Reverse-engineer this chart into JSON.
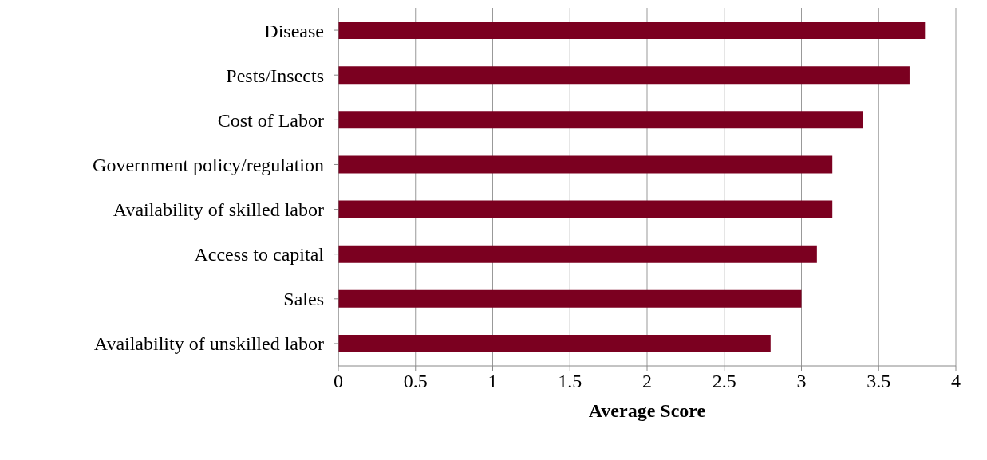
{
  "chart_data": {
    "type": "bar",
    "orientation": "horizontal",
    "xlabel": "Average Score",
    "categories": [
      "Disease",
      "Pests/Insects",
      "Cost of Labor",
      "Government policy/regulation",
      "Availability of skilled labor",
      "Access to capital",
      "Sales",
      "Availability of unskilled labor"
    ],
    "values": [
      3.8,
      3.7,
      3.4,
      3.2,
      3.2,
      3.1,
      3.0,
      2.8
    ],
    "color": "#7b0020",
    "xlim": [
      0,
      4
    ],
    "xticks": [
      0,
      0.5,
      1,
      1.5,
      2,
      2.5,
      3,
      3.5,
      4
    ],
    "grid": "x",
    "legend": false
  }
}
